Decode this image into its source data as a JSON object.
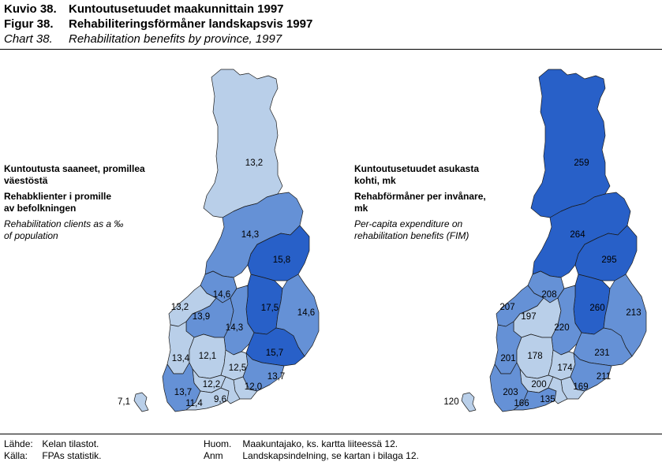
{
  "header": {
    "rows": [
      {
        "key": "Kuvio 38.",
        "text": "Kuntoutusetuudet maakunnittain 1997"
      },
      {
        "key": "Figur 38.",
        "text": "Rehabiliteringsförmåner landskapsvis 1997"
      },
      {
        "key": "Chart 38.",
        "text": "Rehabilitation benefits by province, 1997"
      }
    ]
  },
  "left_legend": {
    "fi": [
      "Kuntoutusta saaneet, promillea",
      "väestöstä"
    ],
    "sv": [
      "Rehabklienter i promille",
      "av befolkningen"
    ],
    "en": [
      "Rehabilitation clients as a ‰",
      "of population"
    ]
  },
  "right_legend": {
    "fi": [
      "Kuntoutusetuudet asukasta",
      "kohti, mk"
    ],
    "sv": [
      "Rehabförmåner per invånare,",
      "mk"
    ],
    "en": [
      "Per-capita expenditure on",
      "rehabilitation benefits (FIM)"
    ]
  },
  "colors": {
    "light": "#b9cfe9",
    "medium": "#6591d6",
    "dark": "#2860c8",
    "border": "#1a1a1a"
  },
  "map_left": {
    "regions": [
      {
        "id": "lappi",
        "value": "13,2",
        "shade": "light"
      },
      {
        "id": "oulu",
        "value": "14,3",
        "shade": "medium"
      },
      {
        "id": "kainuu",
        "value": "15,8",
        "shade": "dark"
      },
      {
        "id": "pohjanmaa",
        "value": "14,6",
        "shade": "medium"
      },
      {
        "id": "pohjois-savo",
        "value": "17,5",
        "shade": "dark"
      },
      {
        "id": "pohjois-karjala",
        "value": "14,6",
        "shade": "medium"
      },
      {
        "id": "keski-pohjanmaa",
        "value": "13,2",
        "shade": "light"
      },
      {
        "id": "etela-pohjanmaa",
        "value": "13,9",
        "shade": "medium"
      },
      {
        "id": "keski-suomi",
        "value": "14,3",
        "shade": "medium"
      },
      {
        "id": "etela-savo",
        "value": "15,7",
        "shade": "dark"
      },
      {
        "id": "satakunta",
        "value": "13,4",
        "shade": "light"
      },
      {
        "id": "pirkanmaa",
        "value": "12,1",
        "shade": "light"
      },
      {
        "id": "paijat-hame",
        "value": "12,5",
        "shade": "light"
      },
      {
        "id": "kymenlaakso",
        "value": "13,7",
        "shade": "medium"
      },
      {
        "id": "kanta-hame",
        "value": "12,2",
        "shade": "light"
      },
      {
        "id": "varsinais-suomi",
        "value": "13,7",
        "shade": "medium"
      },
      {
        "id": "ita-uusimaa",
        "value": "12,0",
        "shade": "light"
      },
      {
        "id": "uusimaa",
        "value": "11,4",
        "shade": "light"
      },
      {
        "id": "helsinki",
        "value": "9,6",
        "shade": "light"
      },
      {
        "id": "ahvenanmaa",
        "value": "7,1",
        "shade": "light"
      }
    ]
  },
  "map_right": {
    "regions": [
      {
        "id": "lappi",
        "value": "259",
        "shade": "dark"
      },
      {
        "id": "oulu",
        "value": "264",
        "shade": "dark"
      },
      {
        "id": "kainuu",
        "value": "295",
        "shade": "dark"
      },
      {
        "id": "pohjanmaa",
        "value": "208",
        "shade": "medium"
      },
      {
        "id": "pohjois-savo",
        "value": "260",
        "shade": "dark"
      },
      {
        "id": "pohjois-karjala",
        "value": "213",
        "shade": "medium"
      },
      {
        "id": "keski-pohjanmaa",
        "value": "207",
        "shade": "medium"
      },
      {
        "id": "etela-pohjanmaa",
        "value": "197",
        "shade": "light"
      },
      {
        "id": "keski-suomi",
        "value": "220",
        "shade": "medium"
      },
      {
        "id": "etela-savo",
        "value": "231",
        "shade": "medium"
      },
      {
        "id": "satakunta",
        "value": "201",
        "shade": "medium"
      },
      {
        "id": "pirkanmaa",
        "value": "178",
        "shade": "light"
      },
      {
        "id": "paijat-hame",
        "value": "174",
        "shade": "light"
      },
      {
        "id": "kymenlaakso",
        "value": "211",
        "shade": "medium"
      },
      {
        "id": "kanta-hame",
        "value": "200",
        "shade": "light"
      },
      {
        "id": "varsinais-suomi",
        "value": "203",
        "shade": "medium"
      },
      {
        "id": "ita-uusimaa",
        "value": "169",
        "shade": "light"
      },
      {
        "id": "uusimaa",
        "value": "166",
        "shade": "medium"
      },
      {
        "id": "helsinki",
        "value": "135",
        "shade": "light"
      },
      {
        "id": "ahvenanmaa",
        "value": "120",
        "shade": "light"
      }
    ]
  },
  "footer": {
    "source_fi_key": "Lähde:",
    "source_fi": "Kelan tilastot.",
    "source_sv_key": "Källa:",
    "source_sv": "FPAs statistik.",
    "note_fi_key": "Huom.",
    "note_fi": "Maakuntajako, ks. kartta liiteessä 12.",
    "note_sv_key": "Anm",
    "note_sv": "Landskapsindelning, se kartan i bilaga 12."
  }
}
